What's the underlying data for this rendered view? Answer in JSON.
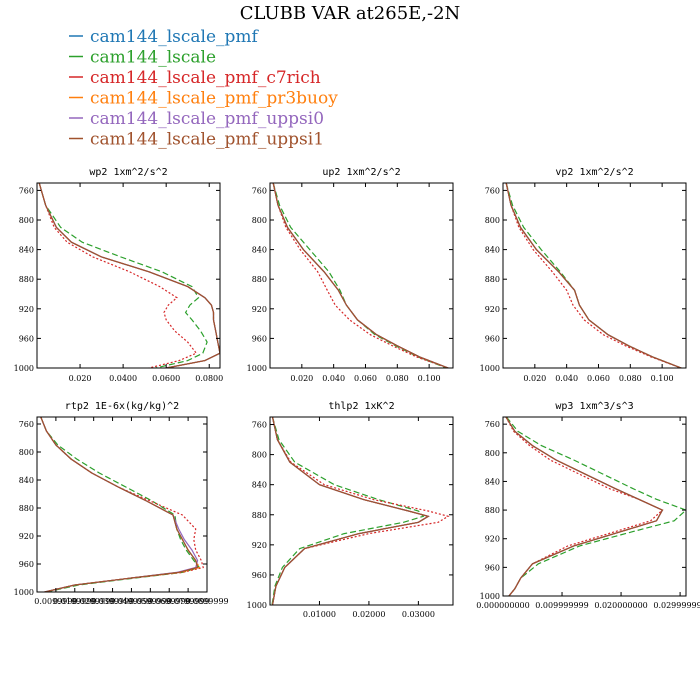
{
  "title": "CLUBB VAR at265E,-2N",
  "series": [
    {
      "name": "cam144_lscale_pmf",
      "color": "#1f77b4",
      "dash": ""
    },
    {
      "name": "cam144_lscale",
      "color": "#2ca02c",
      "dash": "6,3"
    },
    {
      "name": "cam144_lscale_pmf_c7rich",
      "color": "#d62728",
      "dash": "2,2"
    },
    {
      "name": "cam144_lscale_pmf_pr3buoy",
      "color": "#ff7f0e",
      "dash": "6,2,2,2"
    },
    {
      "name": "cam144_lscale_pmf_uppsi0",
      "color": "#9467bd",
      "dash": ""
    },
    {
      "name": "cam144_lscale_pmf_uppsi1",
      "color": "#a0522d",
      "dash": ""
    }
  ],
  "chart_data": [
    {
      "type": "line",
      "title": "wp2  1xm^2/s^2",
      "xlim": [
        0,
        0.085
      ],
      "ylim": [
        1000,
        750
      ],
      "xticks": [
        0.02,
        0.04,
        0.06,
        0.08
      ],
      "xtick_labels": [
        "0.020",
        "0.0400",
        "0.0600",
        "0.0800"
      ],
      "yticks": [
        760,
        800,
        840,
        880,
        920,
        960,
        1000
      ],
      "y": [
        750,
        780,
        810,
        830,
        850,
        870,
        890,
        905,
        915,
        925,
        935,
        950,
        965,
        980,
        990,
        1000
      ],
      "series": [
        [
          0.001,
          0.004,
          0.009,
          0.016,
          0.03,
          0.052,
          0.07,
          0.078,
          0.081,
          0.082,
          0.082,
          0.083,
          0.084,
          0.085,
          0.078,
          0.06
        ],
        [
          0.001,
          0.004,
          0.011,
          0.021,
          0.039,
          0.058,
          0.072,
          0.075,
          0.071,
          0.069,
          0.072,
          0.076,
          0.079,
          0.077,
          0.07,
          0.055
        ],
        [
          0.001,
          0.004,
          0.008,
          0.014,
          0.026,
          0.043,
          0.057,
          0.065,
          0.061,
          0.059,
          0.06,
          0.064,
          0.07,
          0.074,
          0.066,
          0.052
        ],
        [
          0.001,
          0.004,
          0.009,
          0.016,
          0.03,
          0.052,
          0.07,
          0.078,
          0.081,
          0.082,
          0.082,
          0.083,
          0.084,
          0.085,
          0.078,
          0.06
        ],
        [
          0.001,
          0.004,
          0.009,
          0.016,
          0.03,
          0.052,
          0.07,
          0.078,
          0.081,
          0.082,
          0.082,
          0.083,
          0.084,
          0.085,
          0.078,
          0.06
        ],
        [
          0.001,
          0.004,
          0.009,
          0.016,
          0.03,
          0.052,
          0.07,
          0.078,
          0.081,
          0.082,
          0.082,
          0.083,
          0.084,
          0.085,
          0.078,
          0.06
        ]
      ]
    },
    {
      "type": "line",
      "title": "up2  1xm^2/s^2",
      "xlim": [
        0,
        0.115
      ],
      "ylim": [
        1000,
        750
      ],
      "xticks": [
        0.02,
        0.04,
        0.06,
        0.08,
        0.1
      ],
      "xtick_labels": [
        "0.020",
        "0.040",
        "0.060",
        "0.080",
        "0.100"
      ],
      "yticks": [
        760,
        800,
        840,
        880,
        920,
        960,
        1000
      ],
      "y": [
        750,
        780,
        810,
        840,
        870,
        895,
        915,
        935,
        955,
        970,
        985,
        1000
      ],
      "series": [
        [
          0.002,
          0.005,
          0.011,
          0.021,
          0.034,
          0.043,
          0.048,
          0.055,
          0.067,
          0.08,
          0.094,
          0.112
        ],
        [
          0.002,
          0.006,
          0.013,
          0.025,
          0.037,
          0.044,
          0.048,
          0.055,
          0.066,
          0.079,
          0.093,
          0.111
        ],
        [
          0.002,
          0.005,
          0.01,
          0.019,
          0.03,
          0.036,
          0.041,
          0.05,
          0.063,
          0.077,
          0.092,
          0.112
        ],
        [
          0.002,
          0.005,
          0.011,
          0.021,
          0.034,
          0.043,
          0.048,
          0.055,
          0.067,
          0.08,
          0.094,
          0.112
        ],
        [
          0.002,
          0.005,
          0.011,
          0.021,
          0.034,
          0.043,
          0.048,
          0.055,
          0.067,
          0.08,
          0.094,
          0.112
        ],
        [
          0.002,
          0.005,
          0.011,
          0.021,
          0.034,
          0.043,
          0.048,
          0.055,
          0.067,
          0.08,
          0.094,
          0.112
        ]
      ]
    },
    {
      "type": "line",
      "title": "vp2  1xm^2/s^2",
      "xlim": [
        0,
        0.115
      ],
      "ylim": [
        1000,
        750
      ],
      "xticks": [
        0.02,
        0.04,
        0.06,
        0.08,
        0.1
      ],
      "xtick_labels": [
        "0.020",
        "0.040",
        "0.060",
        "0.080",
        "0.100"
      ],
      "yticks": [
        760,
        800,
        840,
        880,
        920,
        960,
        1000
      ],
      "y": [
        750,
        780,
        810,
        840,
        870,
        895,
        915,
        935,
        955,
        970,
        985,
        1000
      ],
      "series": [
        [
          0.002,
          0.005,
          0.011,
          0.021,
          0.035,
          0.045,
          0.048,
          0.054,
          0.066,
          0.079,
          0.094,
          0.112
        ],
        [
          0.002,
          0.006,
          0.013,
          0.024,
          0.036,
          0.045,
          0.048,
          0.054,
          0.066,
          0.079,
          0.094,
          0.112
        ],
        [
          0.002,
          0.005,
          0.01,
          0.019,
          0.031,
          0.04,
          0.044,
          0.051,
          0.063,
          0.077,
          0.093,
          0.112
        ],
        [
          0.002,
          0.005,
          0.011,
          0.021,
          0.035,
          0.045,
          0.048,
          0.054,
          0.066,
          0.079,
          0.094,
          0.112
        ],
        [
          0.002,
          0.005,
          0.011,
          0.021,
          0.035,
          0.045,
          0.048,
          0.054,
          0.066,
          0.079,
          0.094,
          0.112
        ],
        [
          0.002,
          0.005,
          0.011,
          0.021,
          0.035,
          0.045,
          0.048,
          0.054,
          0.066,
          0.079,
          0.094,
          0.112
        ]
      ]
    },
    {
      "type": "line",
      "title": "rtp2  1E-6x(kg/kg)^2",
      "xlim": [
        0,
        0.09
      ],
      "ylim": [
        1000,
        750
      ],
      "xticks": [
        0.01,
        0.02,
        0.03,
        0.04,
        0.05,
        0.06,
        0.07,
        0.08,
        0.09
      ],
      "xtick_labels": [
        "0.0099999",
        "0.0199999",
        "0.0299999",
        "0.0399999",
        "0.0499999",
        "0.0599999",
        "0.0699999",
        "0.0799999",
        "0.0899999"
      ],
      "yticks": [
        760,
        800,
        840,
        880,
        920,
        960,
        1000
      ],
      "y": [
        750,
        770,
        790,
        810,
        830,
        850,
        870,
        890,
        910,
        925,
        940,
        955,
        965,
        972,
        980,
        990,
        1000
      ],
      "series": [
        [
          0.002,
          0.005,
          0.01,
          0.018,
          0.029,
          0.043,
          0.058,
          0.072,
          0.074,
          0.077,
          0.08,
          0.084,
          0.085,
          0.075,
          0.05,
          0.02,
          0.004
        ],
        [
          0.002,
          0.005,
          0.011,
          0.021,
          0.033,
          0.047,
          0.061,
          0.073,
          0.074,
          0.076,
          0.079,
          0.083,
          0.086,
          0.077,
          0.052,
          0.022,
          0.005
        ],
        [
          0.002,
          0.005,
          0.01,
          0.018,
          0.029,
          0.043,
          0.06,
          0.077,
          0.084,
          0.083,
          0.084,
          0.087,
          0.088,
          0.077,
          0.05,
          0.02,
          0.004
        ],
        [
          0.002,
          0.005,
          0.01,
          0.018,
          0.029,
          0.043,
          0.058,
          0.072,
          0.074,
          0.077,
          0.08,
          0.084,
          0.086,
          0.076,
          0.05,
          0.02,
          0.004
        ],
        [
          0.002,
          0.005,
          0.01,
          0.018,
          0.029,
          0.043,
          0.058,
          0.072,
          0.075,
          0.078,
          0.082,
          0.085,
          0.084,
          0.074,
          0.05,
          0.02,
          0.004
        ],
        [
          0.002,
          0.005,
          0.01,
          0.018,
          0.029,
          0.043,
          0.058,
          0.072,
          0.074,
          0.077,
          0.08,
          0.084,
          0.085,
          0.075,
          0.05,
          0.02,
          0.004
        ]
      ]
    },
    {
      "type": "line",
      "title": "thlp2  1xK^2",
      "xlim": [
        0,
        0.037
      ],
      "ylim": [
        1000,
        750
      ],
      "xticks": [
        0.01,
        0.02,
        0.03
      ],
      "xtick_labels": [
        "0.01000",
        "0.02000",
        "0.03000"
      ],
      "yticks": [
        760,
        800,
        840,
        880,
        920,
        960,
        1000
      ],
      "y": [
        750,
        780,
        810,
        840,
        860,
        875,
        882,
        890,
        905,
        925,
        950,
        975,
        1000
      ],
      "series": [
        [
          0.0005,
          0.0015,
          0.004,
          0.01,
          0.019,
          0.028,
          0.032,
          0.03,
          0.018,
          0.007,
          0.003,
          0.0012,
          0.0005
        ],
        [
          0.0005,
          0.0018,
          0.005,
          0.013,
          0.022,
          0.03,
          0.031,
          0.027,
          0.015,
          0.006,
          0.0025,
          0.001,
          0.0004
        ],
        [
          0.0005,
          0.0015,
          0.0042,
          0.011,
          0.021,
          0.032,
          0.036,
          0.034,
          0.02,
          0.007,
          0.003,
          0.0012,
          0.0005
        ],
        [
          0.0005,
          0.0015,
          0.004,
          0.01,
          0.019,
          0.028,
          0.032,
          0.03,
          0.018,
          0.007,
          0.003,
          0.0012,
          0.0005
        ],
        [
          0.0005,
          0.0015,
          0.004,
          0.01,
          0.019,
          0.028,
          0.032,
          0.03,
          0.018,
          0.007,
          0.003,
          0.0012,
          0.0005
        ],
        [
          0.0005,
          0.0015,
          0.004,
          0.01,
          0.019,
          0.028,
          0.032,
          0.03,
          0.018,
          0.007,
          0.003,
          0.0012,
          0.0005
        ]
      ]
    },
    {
      "type": "line",
      "title": "wp3  1xm^3/s^3",
      "xlim": [
        0,
        0.031
      ],
      "ylim": [
        1000,
        750
      ],
      "xticks": [
        0,
        0.01,
        0.02,
        0.03
      ],
      "xtick_labels": [
        "0.000000000",
        "0.009999999",
        "0.020000000",
        "0.029999999"
      ],
      "yticks": [
        760,
        800,
        840,
        880,
        920,
        960,
        1000
      ],
      "y": [
        750,
        770,
        790,
        810,
        830,
        850,
        865,
        880,
        895,
        910,
        930,
        955,
        975,
        990,
        1000
      ],
      "series": [
        [
          0.0005,
          0.002,
          0.005,
          0.009,
          0.014,
          0.019,
          0.023,
          0.027,
          0.026,
          0.02,
          0.012,
          0.005,
          0.003,
          0.002,
          0.001
        ],
        [
          0.0006,
          0.0025,
          0.0065,
          0.012,
          0.017,
          0.022,
          0.026,
          0.031,
          0.029,
          0.022,
          0.013,
          0.006,
          0.003,
          0.002,
          0.001
        ],
        [
          0.0005,
          0.0018,
          0.0045,
          0.008,
          0.013,
          0.018,
          0.023,
          0.027,
          0.025,
          0.019,
          0.011,
          0.005,
          0.003,
          0.002,
          0.001
        ],
        [
          0.0005,
          0.002,
          0.005,
          0.009,
          0.014,
          0.019,
          0.023,
          0.027,
          0.026,
          0.02,
          0.012,
          0.005,
          0.003,
          0.002,
          0.001
        ],
        [
          0.0005,
          0.002,
          0.005,
          0.009,
          0.014,
          0.019,
          0.023,
          0.027,
          0.026,
          0.02,
          0.012,
          0.005,
          0.003,
          0.002,
          0.001
        ],
        [
          0.0005,
          0.002,
          0.005,
          0.009,
          0.014,
          0.019,
          0.023,
          0.027,
          0.026,
          0.02,
          0.012,
          0.005,
          0.003,
          0.002,
          0.001
        ]
      ]
    }
  ]
}
